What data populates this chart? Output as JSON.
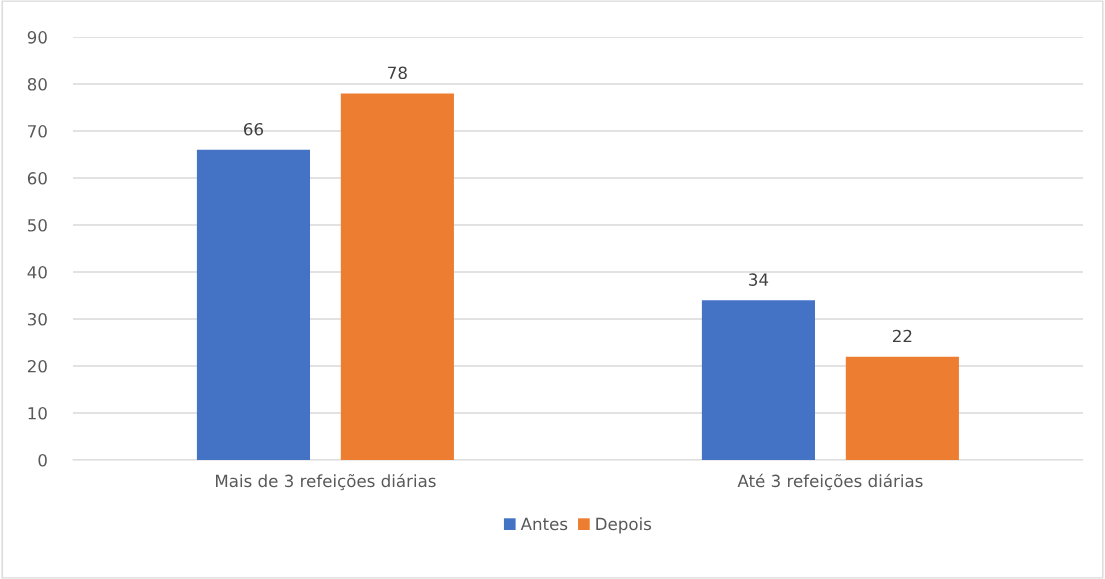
{
  "chart_data": {
    "type": "bar",
    "categories": [
      "Mais de 3 refeições diárias",
      "Até 3 refeições diárias"
    ],
    "series": [
      {
        "name": "Antes",
        "color": "#4472c4",
        "values": [
          66,
          34
        ]
      },
      {
        "name": "Depois",
        "color": "#ed7d31",
        "values": [
          78,
          22
        ]
      }
    ],
    "ylim": [
      0,
      90
    ],
    "yticks": [
      0,
      10,
      20,
      30,
      40,
      50,
      60,
      70,
      80,
      90
    ],
    "grid": "y",
    "legend": "bottom",
    "data_labels": true
  }
}
